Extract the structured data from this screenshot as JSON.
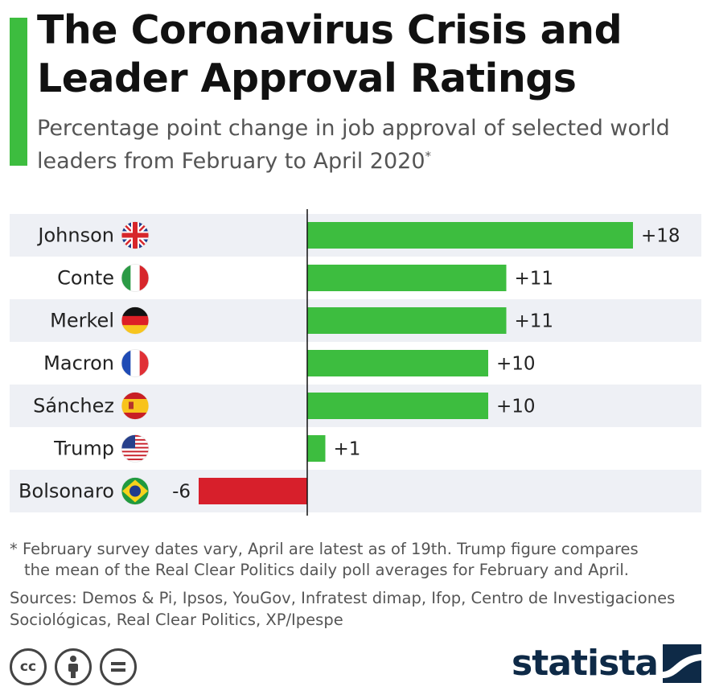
{
  "header": {
    "title": "The Coronavirus Crisis and Leader Approval Ratings",
    "subtitle": "Percentage point change in job approval of selected world leaders from February to April 2020",
    "subtitle_mark": "*"
  },
  "colors": {
    "accent": "#3dbd3f",
    "positive": "#3dbd3f",
    "negative": "#d71f2b",
    "row_band": "#eef0f5"
  },
  "chart_data": {
    "type": "bar",
    "orientation": "horizontal",
    "categories": [
      "Johnson",
      "Conte",
      "Merkel",
      "Macron",
      "Sánchez",
      "Trump",
      "Bolsonaro"
    ],
    "values": [
      18,
      11,
      11,
      10,
      10,
      1,
      -6
    ],
    "value_labels": [
      "+18",
      "+11",
      "+11",
      "+10",
      "+10",
      "+1",
      "-6"
    ],
    "flags": [
      "uk-flag-icon",
      "italy-flag-icon",
      "germany-flag-icon",
      "france-flag-icon",
      "spain-flag-icon",
      "usa-flag-icon",
      "brazil-flag-icon"
    ],
    "xlim": [
      -6,
      18
    ],
    "grid": false,
    "legend": "none"
  },
  "footnote": {
    "line1": "* February survey dates vary, April are latest as of 19th. Trump figure compares",
    "line2": "the mean of the Real Clear Politics daily poll averages for February and April."
  },
  "sources": "Sources: Demos & Pi, Ipsos, YouGov, Infratest dimap, Ifop, Centro de Investigaciones Sociológicas, Real Clear Politics, XP/Ipespe",
  "license_icons": [
    "cc-icon",
    "attribution-icon",
    "no-derivatives-icon"
  ],
  "logo": {
    "text": "statista"
  }
}
